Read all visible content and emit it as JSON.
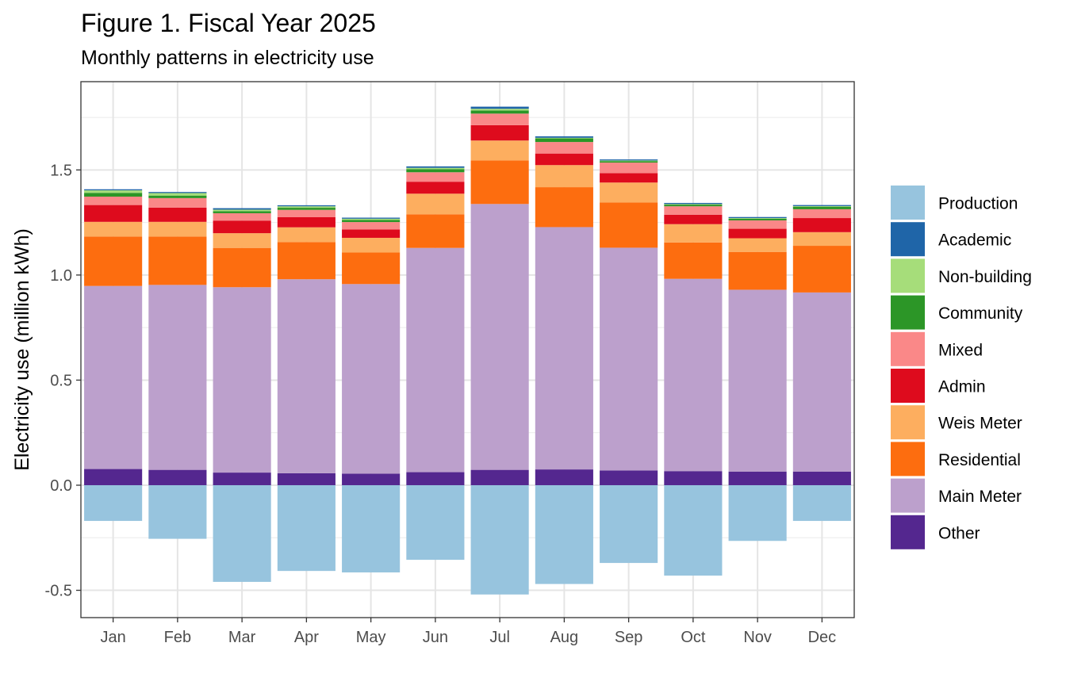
{
  "chart_data": {
    "type": "bar",
    "stacked": true,
    "title": "Figure 1. Fiscal Year 2025",
    "subtitle": "Monthly patterns in electricity use",
    "xlabel": "",
    "ylabel": "Electricity use (million kWh)",
    "ylim": [
      -0.63,
      1.92
    ],
    "yticks": [
      -0.5,
      0.0,
      0.5,
      1.0,
      1.5
    ],
    "ytick_labels": [
      "-0.5",
      "0.0",
      "0.5",
      "1.0",
      "1.5"
    ],
    "grid": true,
    "legend_position": "right",
    "categories": [
      "Jan",
      "Feb",
      "Mar",
      "Apr",
      "May",
      "Jun",
      "Jul",
      "Aug",
      "Sep",
      "Oct",
      "Nov",
      "Dec"
    ],
    "series": [
      {
        "name": "Other",
        "color": "#54278F",
        "values": [
          0.077,
          0.073,
          0.06,
          0.057,
          0.055,
          0.062,
          0.073,
          0.075,
          0.07,
          0.067,
          0.065,
          0.065
        ]
      },
      {
        "name": "Main Meter",
        "color": "#BCA0CC",
        "values": [
          0.871,
          0.88,
          0.882,
          0.923,
          0.902,
          1.067,
          1.265,
          1.153,
          1.06,
          0.915,
          0.865,
          0.852
        ]
      },
      {
        "name": "Residential",
        "color": "#FD6D0F",
        "values": [
          0.235,
          0.23,
          0.187,
          0.177,
          0.15,
          0.16,
          0.207,
          0.19,
          0.215,
          0.173,
          0.18,
          0.222
        ]
      },
      {
        "name": "Weis Meter",
        "color": "#FDAE5F",
        "values": [
          0.07,
          0.07,
          0.07,
          0.07,
          0.07,
          0.098,
          0.095,
          0.105,
          0.095,
          0.087,
          0.065,
          0.065
        ]
      },
      {
        "name": "Admin",
        "color": "#DE0B1D",
        "values": [
          0.08,
          0.068,
          0.06,
          0.048,
          0.04,
          0.057,
          0.073,
          0.055,
          0.045,
          0.045,
          0.045,
          0.067
        ]
      },
      {
        "name": "Mixed",
        "color": "#FA8888",
        "values": [
          0.04,
          0.045,
          0.035,
          0.035,
          0.035,
          0.045,
          0.055,
          0.055,
          0.05,
          0.04,
          0.04,
          0.042
        ]
      },
      {
        "name": "Community",
        "color": "#2C9627",
        "values": [
          0.018,
          0.012,
          0.01,
          0.01,
          0.01,
          0.015,
          0.015,
          0.017,
          0.007,
          0.008,
          0.008,
          0.012
        ]
      },
      {
        "name": "Non-building",
        "color": "#A6DD7A",
        "values": [
          0.012,
          0.012,
          0.007,
          0.007,
          0.006,
          0.006,
          0.008,
          0.003,
          0.003,
          0.003,
          0.003,
          0.003
        ]
      },
      {
        "name": "Academic",
        "color": "#1F65A8",
        "values": [
          0.005,
          0.005,
          0.007,
          0.005,
          0.005,
          0.007,
          0.01,
          0.007,
          0.005,
          0.005,
          0.005,
          0.005
        ]
      },
      {
        "name": "Production",
        "color": "#97C4DE",
        "values": [
          -0.17,
          -0.255,
          -0.46,
          -0.408,
          -0.415,
          -0.355,
          -0.52,
          -0.47,
          -0.37,
          -0.43,
          -0.265,
          -0.17
        ]
      }
    ],
    "legend_order": [
      "Production",
      "Academic",
      "Non-building",
      "Community",
      "Mixed",
      "Admin",
      "Weis Meter",
      "Residential",
      "Main Meter",
      "Other"
    ]
  }
}
